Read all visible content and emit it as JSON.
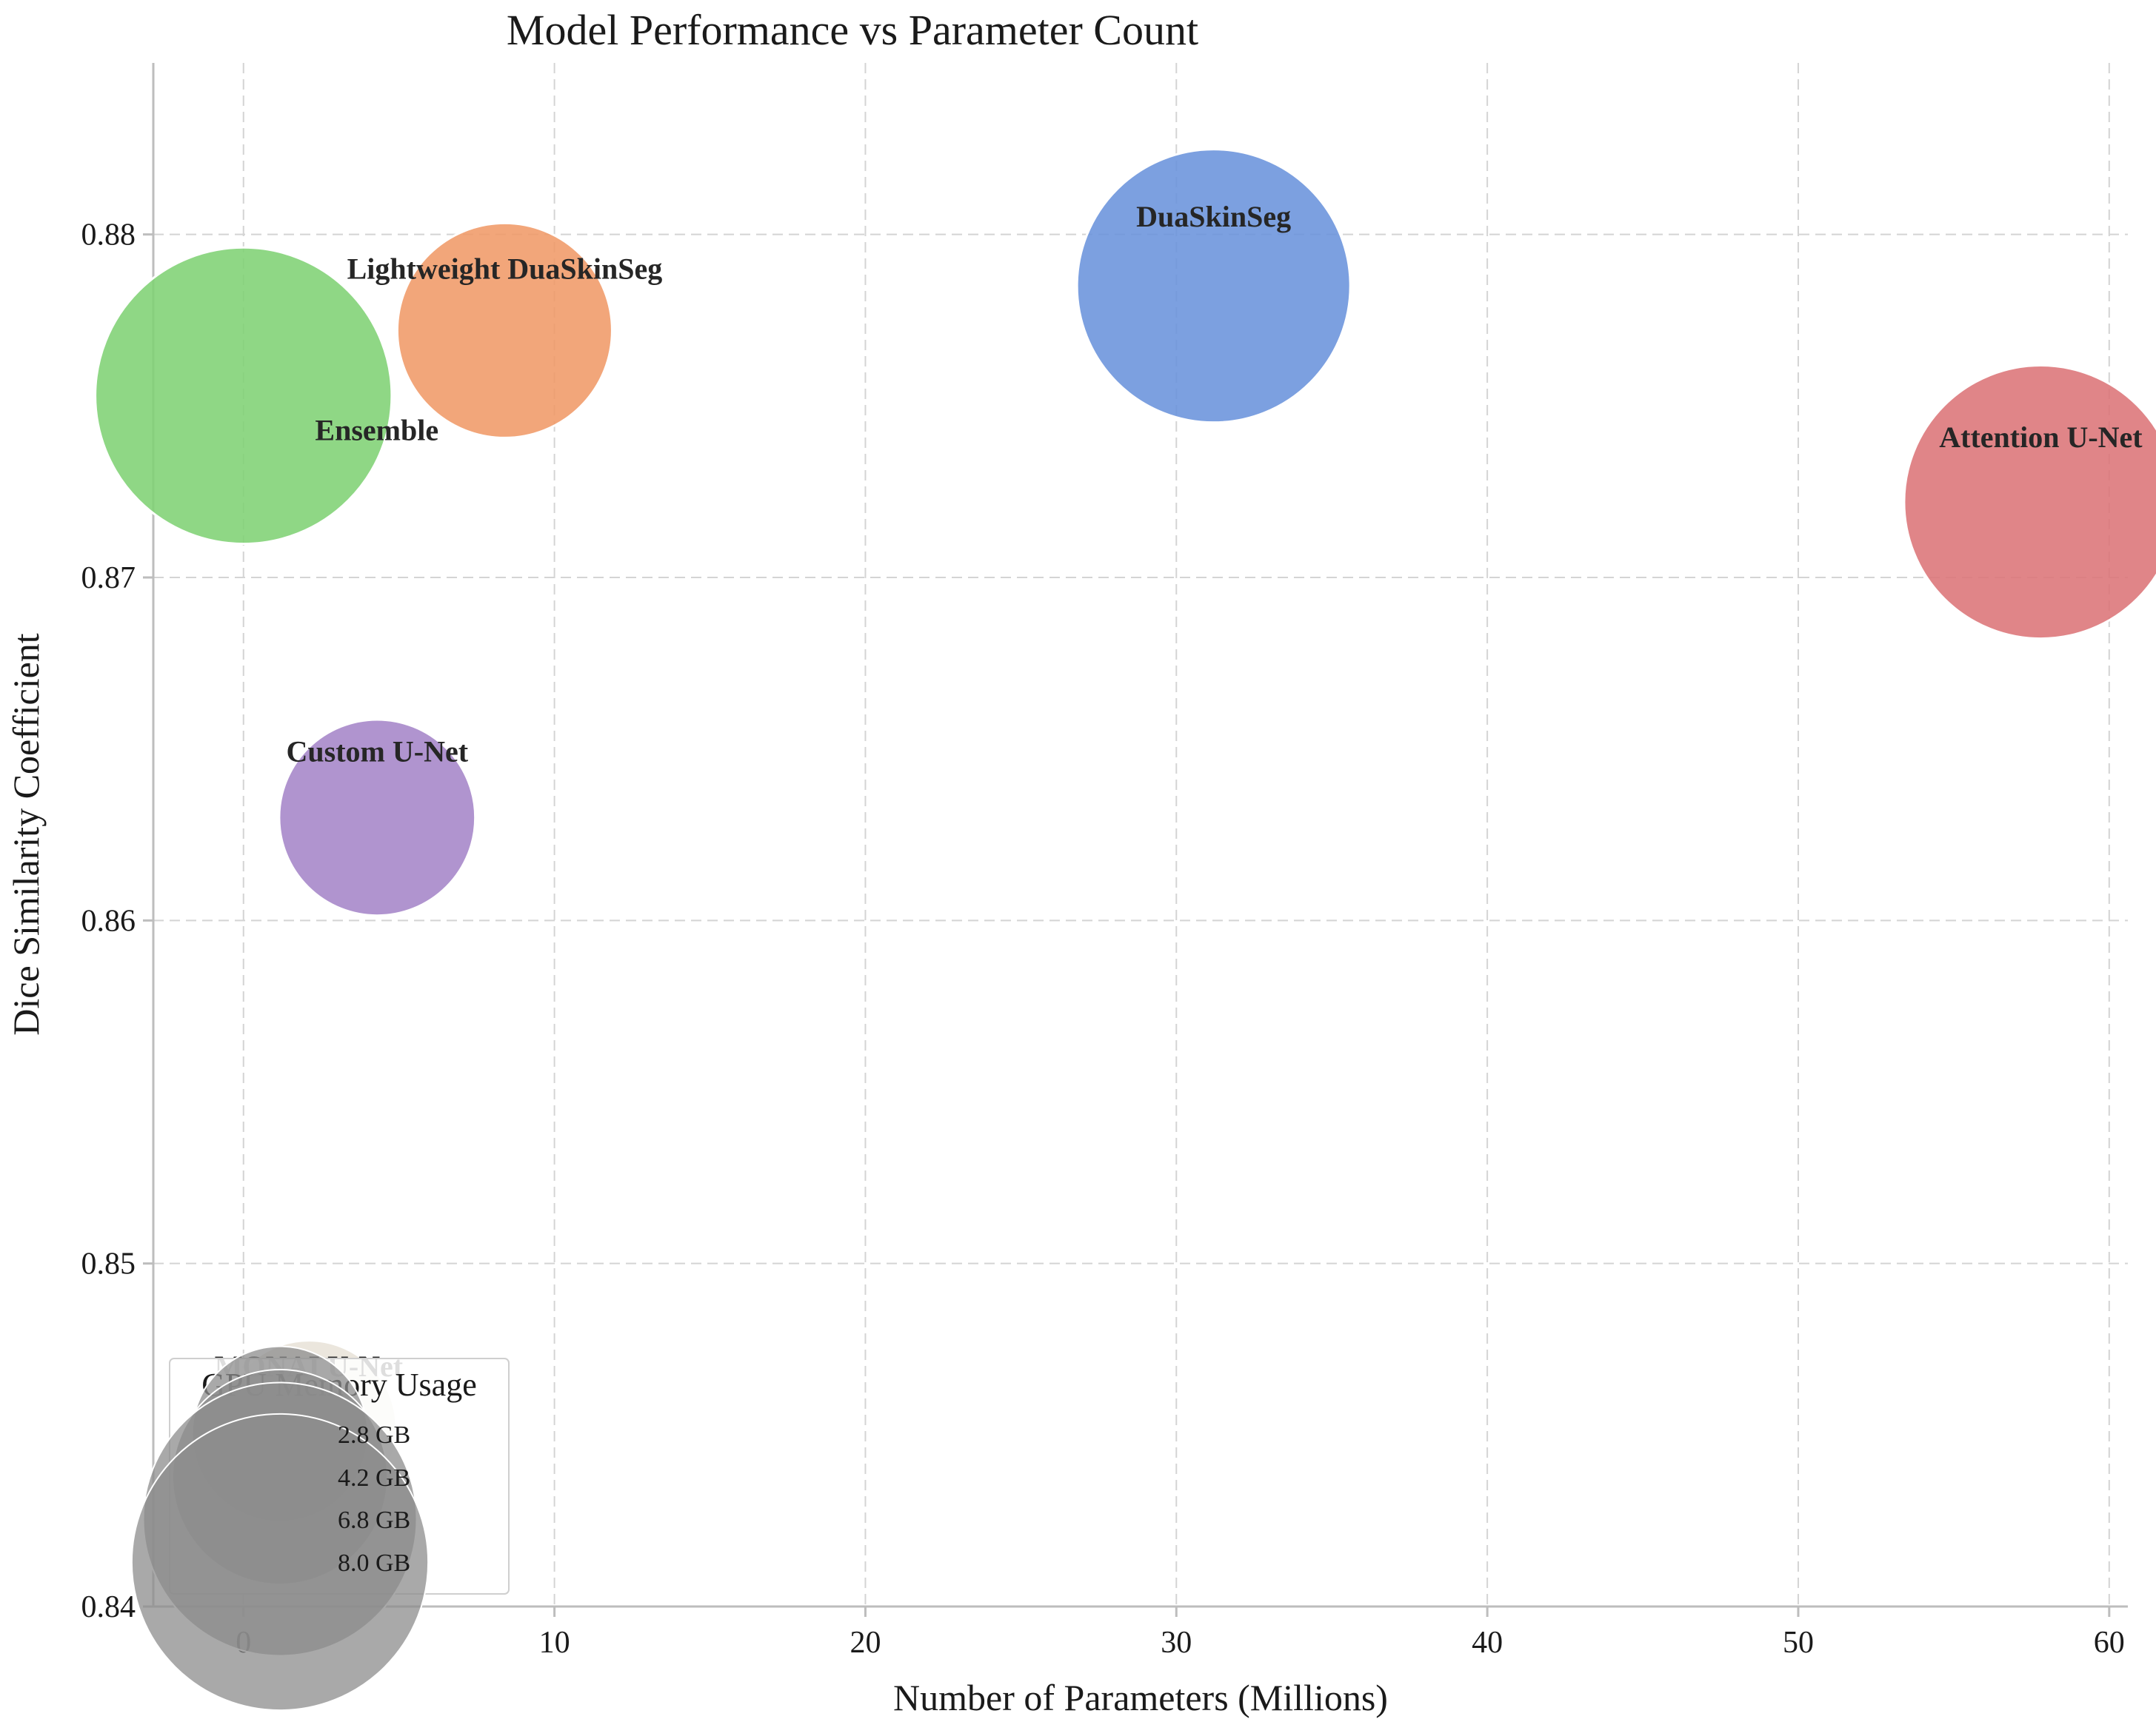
{
  "chart_data": {
    "type": "scatter",
    "title": "Model Performance vs Parameter Count",
    "xlabel": "Number of Parameters (Millions)",
    "ylabel": "Dice Similarity Coefficient",
    "xlim": [
      -2.9,
      60.6
    ],
    "ylim": [
      0.84,
      0.885
    ],
    "xticks": [
      0,
      10,
      20,
      30,
      40,
      50,
      60
    ],
    "yticks": [
      0.84,
      0.85,
      0.86,
      0.87,
      0.88
    ],
    "ytick_labels": [
      "0.84",
      "0.85",
      "0.86",
      "0.87",
      "0.88"
    ],
    "grid": true,
    "size_encoding": "GPU memory usage (GB)",
    "points": [
      {
        "label": "DuaSkinSeg",
        "x": 31.2,
        "y": 0.8785,
        "gpu_gb": 6.8,
        "color": "#6a93dc"
      },
      {
        "label": "Lightweight DuaSkinSeg",
        "x": 8.4,
        "y": 0.8772,
        "gpu_gb": 4.2,
        "color": "#f09a68"
      },
      {
        "label": "Ensemble",
        "x": 0.0,
        "y": 0.8753,
        "gpu_gb": 8.0,
        "color": "#7fd274"
      },
      {
        "label": "Attention U-Net",
        "x": 57.8,
        "y": 0.8722,
        "gpu_gb": 6.8,
        "color": "#dc7478"
      },
      {
        "label": "Custom U-Net",
        "x": 4.3,
        "y": 0.863,
        "gpu_gb": 3.5,
        "color": "#a585c8"
      },
      {
        "label": "MONAI U-Net",
        "x": 2.1,
        "y": 0.8452,
        "gpu_gb": 2.8,
        "color": "#e8e2d8"
      }
    ],
    "legend": {
      "title": "GPU Memory Usage",
      "position": "lower-left",
      "entries": [
        {
          "label": "2.8 GB",
          "gpu_gb": 2.8
        },
        {
          "label": "4.2 GB",
          "gpu_gb": 4.2
        },
        {
          "label": "6.8 GB",
          "gpu_gb": 6.8
        },
        {
          "label": "8.0 GB",
          "gpu_gb": 8.0
        }
      ],
      "marker_color": "#8c8c8c"
    },
    "colors": {
      "axis": "#bdbdbd",
      "grid": "#d4d4d4",
      "marker_edge": "#ffffff"
    }
  }
}
